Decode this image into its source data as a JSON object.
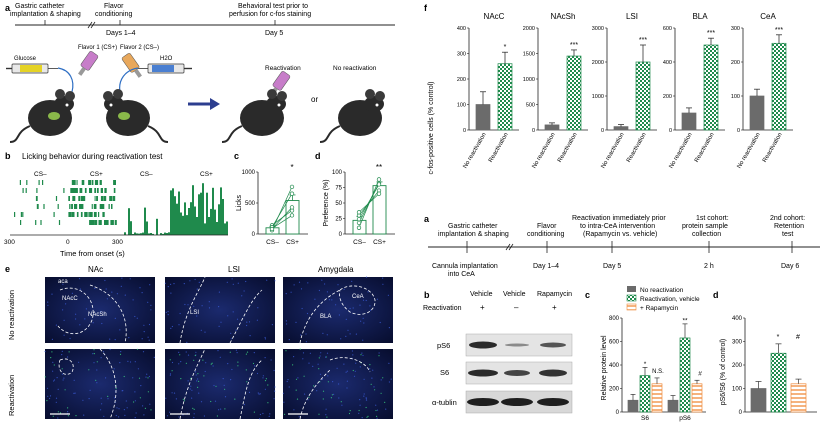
{
  "panel_letters": {
    "a_top": "a",
    "b_top": "b",
    "c_top": "c",
    "d_top": "d",
    "e_top": "e",
    "f_top": "f",
    "a_bottom": "a",
    "b_bottom": "b",
    "c_bottom": "c",
    "d_bottom": "d"
  },
  "panel_a": {
    "step1": "Gastric catheter implantation & shaping",
    "step2": "Flavor conditioning",
    "step3": "Behavioral test prior to perfusion for c-fos staining",
    "days": "Days 1–4",
    "day5": "Day 5",
    "flavor1": "Flavor 1 (CS+)",
    "flavor2": "Flavor 2 (CS–)",
    "glucose": "Glucose",
    "water": "H2O",
    "reactivation": "Reactivation",
    "no_reactivation": "No reactivation",
    "or": "or"
  },
  "panel_b": {
    "title": "Licking behavior during reactivation test",
    "cs_minus": "CS–",
    "cs_plus": "CS+",
    "xlabel": "Time from onset (s)",
    "ticks": [
      "300",
      "0",
      "300"
    ]
  },
  "panel_e": {
    "regions": [
      "NAc",
      "LSI",
      "Amygdala"
    ],
    "row_labels": [
      "No reactivation",
      "Reactivation"
    ],
    "inset_labels": {
      "nac": "NAcC",
      "nacsh": "NAcSh",
      "lsi": "LSI",
      "cea": "CeA",
      "bla": "BLA",
      "aca": "aca"
    }
  },
  "panel_b2": {
    "columns": [
      "Vehicle",
      "Vehicle",
      "Rapamycin"
    ],
    "reactivation_label": "Reactivation",
    "signs": [
      "+",
      "–",
      "+"
    ],
    "blots": [
      "pS6",
      "S6",
      "α-tublin"
    ]
  },
  "timeline2": {
    "top_labels": [
      "Gastric catheter implantation & shaping",
      "Flavor conditioning",
      "Reactivation immediately prior to intra-CeA intervention (Rapamycin vs. vehicle)",
      "1st cohort: protein sample collection",
      "2nd cohort: Retention test"
    ],
    "bottom_labels": [
      "Cannula implantation into CeA",
      "Day 1–4",
      "Day 5",
      "2 h",
      "Day 6"
    ]
  },
  "chart_data": [
    {
      "id": "c_top",
      "type": "bar",
      "categories": [
        "CS–",
        "CS+"
      ],
      "values": [
        100,
        540
      ],
      "errors": [
        20,
        90
      ],
      "ylabel": "Licks",
      "ylim": [
        0,
        1000
      ],
      "yticks": [
        "0",
        "500",
        "1000"
      ],
      "significance": "*",
      "paired_lines": [
        [
          60,
          760
        ],
        [
          90,
          300
        ],
        [
          140,
          380
        ],
        [
          110,
          650
        ],
        [
          80,
          430
        ]
      ]
    },
    {
      "id": "d_top",
      "type": "bar",
      "categories": [
        "CS–",
        "CS+"
      ],
      "values": [
        22,
        78
      ],
      "errors": [
        6,
        6
      ],
      "ylabel": "Preference (%)",
      "ylim": [
        0,
        100
      ],
      "yticks": [
        "0",
        "25",
        "50",
        "75",
        "100"
      ],
      "significance": "**",
      "paired_lines": [
        [
          10,
          88
        ],
        [
          30,
          70
        ],
        [
          18,
          82
        ],
        [
          35,
          65
        ],
        [
          24,
          80
        ]
      ]
    },
    {
      "id": "f",
      "type": "bar",
      "ylabel": "c-fos-positive cells (% control)",
      "categories": [
        "No reactivation",
        "Reactivation"
      ],
      "panels": [
        {
          "title": "NAcC",
          "ylim": [
            0,
            400
          ],
          "yticks": [
            "0",
            "100",
            "200",
            "300",
            "400"
          ],
          "values": [
            100,
            260
          ],
          "errors": [
            50,
            45
          ],
          "significance": "*"
        },
        {
          "title": "NAcSh",
          "ylim": [
            0,
            2000
          ],
          "yticks": [
            "0",
            "500",
            "1000",
            "1500",
            "2000"
          ],
          "values": [
            100,
            1450
          ],
          "errors": [
            40,
            120
          ],
          "significance": "***"
        },
        {
          "title": "LSI",
          "ylim": [
            0,
            3000
          ],
          "yticks": [
            "0",
            "1000",
            "2000",
            "3000"
          ],
          "values": [
            100,
            2000
          ],
          "errors": [
            60,
            500
          ],
          "significance": "***"
        },
        {
          "title": "BLA",
          "ylim": [
            0,
            600
          ],
          "yticks": [
            "0",
            "200",
            "400",
            "600"
          ],
          "values": [
            100,
            500
          ],
          "errors": [
            30,
            40
          ],
          "significance": "***"
        },
        {
          "title": "CeA",
          "ylim": [
            0,
            300
          ],
          "yticks": [
            "0",
            "100",
            "200",
            "300"
          ],
          "values": [
            100,
            255
          ],
          "errors": [
            20,
            25
          ],
          "significance": "***"
        }
      ]
    },
    {
      "id": "c_bottom",
      "type": "bar",
      "ylabel": "Relative protein level",
      "ylim": [
        0,
        800
      ],
      "yticks": [
        "0",
        "200",
        "400",
        "600",
        "800"
      ],
      "categories": [
        "S6",
        "pS6"
      ],
      "series": [
        {
          "name": "No reactivation",
          "values": [
            100,
            100
          ],
          "errors": [
            50,
            40
          ]
        },
        {
          "name": "Reactivation, vehicle",
          "values": [
            310,
            630
          ],
          "errors": [
            70,
            120
          ]
        },
        {
          "name": "+ Rapamycin",
          "values": [
            240,
            240
          ],
          "errors": [
            50,
            30
          ]
        }
      ],
      "significance": [
        "*",
        "N.S.",
        "**",
        "#"
      ]
    },
    {
      "id": "d_bottom",
      "type": "bar",
      "ylabel": "pS6/S6 (% of control)",
      "ylim": [
        0,
        400
      ],
      "yticks": [
        "0",
        "100",
        "200",
        "300",
        "400"
      ],
      "categories": [
        "No reactivation",
        "Reactivation, vehicle",
        "+ Rapamycin"
      ],
      "values": [
        100,
        250,
        120
      ],
      "errors": [
        30,
        40,
        20
      ],
      "significance": [
        "*",
        "#"
      ]
    }
  ],
  "colors": {
    "green": "#1f8a4c",
    "green_light": "#b8e0c6",
    "grey": "#6b6b6b",
    "orange": "#f08a3a",
    "dark_navy": "#0c1540",
    "arrow_blue": "#2c3e8f"
  }
}
